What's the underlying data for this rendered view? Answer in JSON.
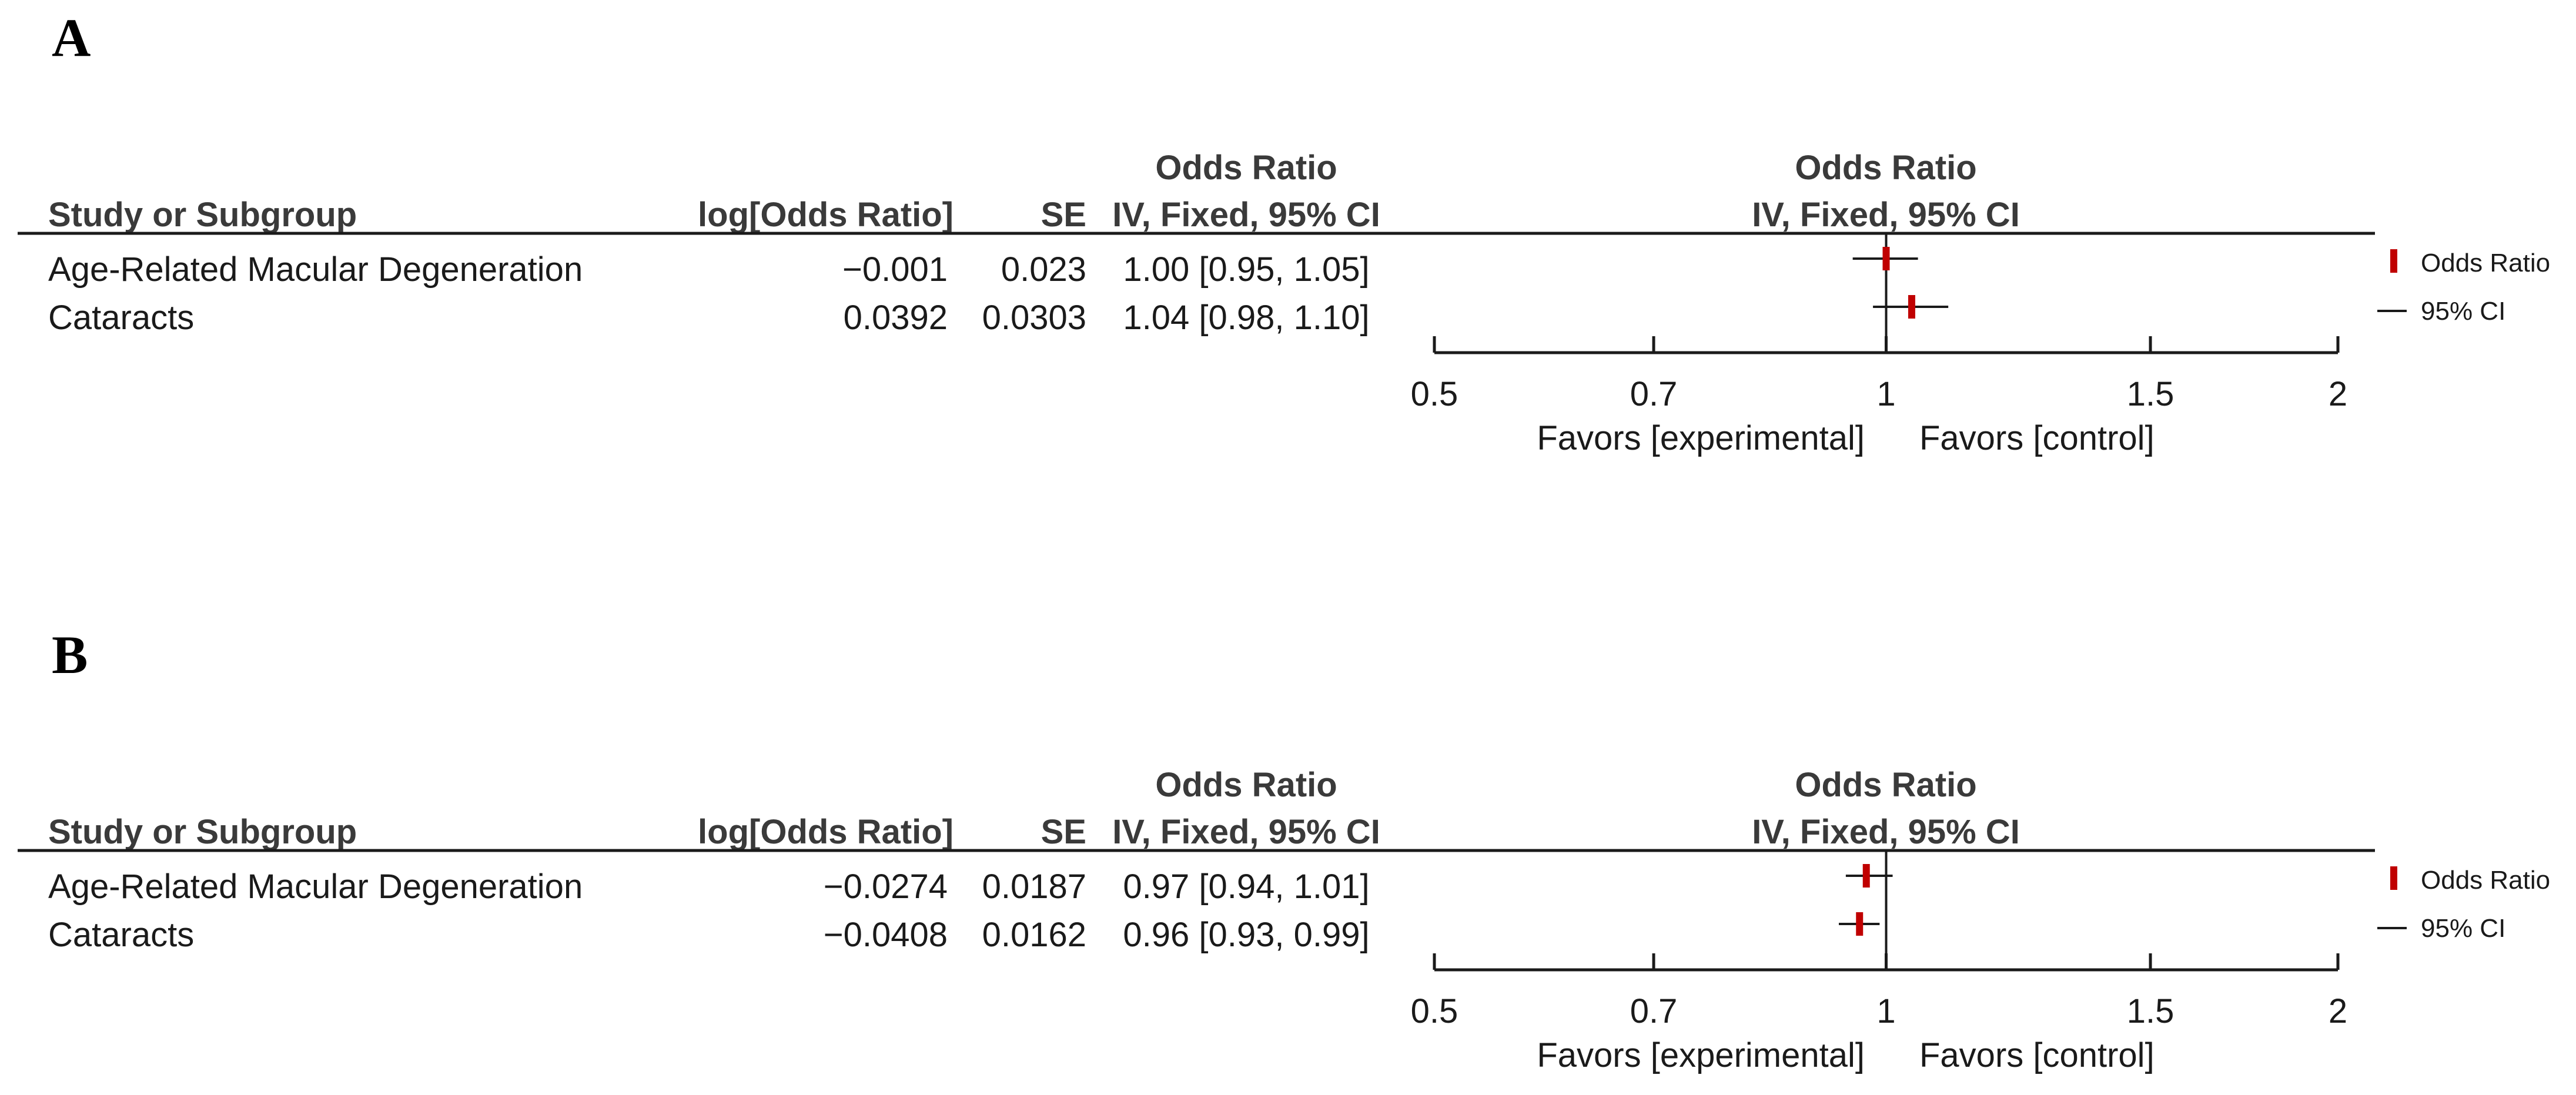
{
  "colors": {
    "point": "#c00000",
    "text": "#1a1a1a",
    "header": "#3a3a3a"
  },
  "chart_data": [
    {
      "type": "forest",
      "panel_label": "A",
      "headers": {
        "study": "Study or Subgroup",
        "log_or": "log[Odds Ratio]",
        "se": "SE",
        "or_title": "Odds Ratio",
        "or_method": "IV, Fixed, 95% CI",
        "plot_title": "Odds Ratio",
        "plot_method": "IV, Fixed, 95% CI"
      },
      "rows": [
        {
          "study": "Age-Related Macular Degeneration",
          "log_or": "−0.001",
          "se": "0.023",
          "or_text": "1.00 [0.95, 1.05]",
          "or": 1.0,
          "lower": 0.95,
          "upper": 1.05
        },
        {
          "study": "Cataracts",
          "log_or": "0.0392",
          "se": "0.0303",
          "or_text": "1.04 [0.98, 1.10]",
          "or": 1.04,
          "lower": 0.98,
          "upper": 1.1
        }
      ],
      "x_scale": "log",
      "xlim": [
        0.5,
        2
      ],
      "x_ticks": [
        0.5,
        0.7,
        1,
        1.5,
        2
      ],
      "x_tick_labels": [
        "0.5",
        "0.7",
        "1",
        "1.5",
        "2"
      ],
      "null_value": 1,
      "favors_left": "Favors [experimental]",
      "favors_right": "Favors [control]",
      "legend": {
        "point": "Odds Ratio",
        "ci": "95% CI"
      }
    },
    {
      "type": "forest",
      "panel_label": "B",
      "headers": {
        "study": "Study or Subgroup",
        "log_or": "log[Odds Ratio]",
        "se": "SE",
        "or_title": "Odds Ratio",
        "or_method": "IV, Fixed, 95% CI",
        "plot_title": "Odds Ratio",
        "plot_method": "IV, Fixed, 95% CI"
      },
      "rows": [
        {
          "study": "Age-Related Macular Degeneration",
          "log_or": "−0.0274",
          "se": "0.0187",
          "or_text": "0.97 [0.94, 1.01]",
          "or": 0.97,
          "lower": 0.94,
          "upper": 1.01
        },
        {
          "study": "Cataracts",
          "log_or": "−0.0408",
          "se": "0.0162",
          "or_text": "0.96 [0.93, 0.99]",
          "or": 0.96,
          "lower": 0.93,
          "upper": 0.99
        }
      ],
      "x_scale": "log",
      "xlim": [
        0.5,
        2
      ],
      "x_ticks": [
        0.5,
        0.7,
        1,
        1.5,
        2
      ],
      "x_tick_labels": [
        "0.5",
        "0.7",
        "1",
        "1.5",
        "2"
      ],
      "null_value": 1,
      "favors_left": "Favors [experimental]",
      "favors_right": "Favors [control]",
      "legend": {
        "point": "Odds Ratio",
        "ci": "95% CI"
      }
    }
  ]
}
